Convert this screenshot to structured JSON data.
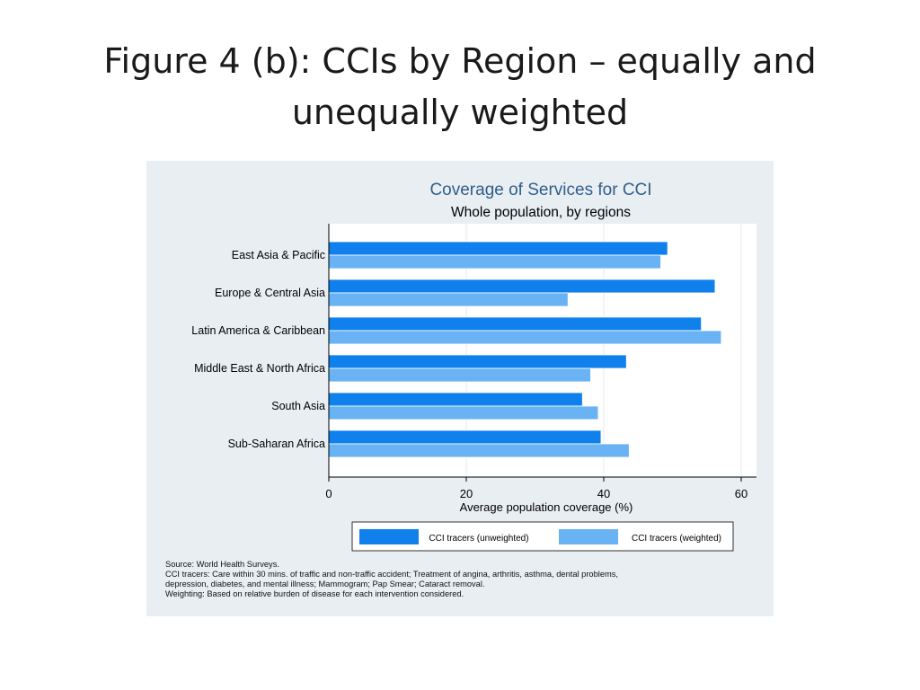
{
  "slide": {
    "title_lines": [
      "Figure 4 (b): CCIs by Region – equally and",
      "unequally weighted"
    ]
  },
  "chart_data": {
    "type": "bar",
    "orientation": "horizontal",
    "title": "Coverage of Services for CCI",
    "subtitle": "Whole population, by regions",
    "xlabel": "Average population coverage (%)",
    "ylabel": "",
    "xlim": [
      0,
      62
    ],
    "xticks": [
      0,
      20,
      40,
      60
    ],
    "grid": "vertical",
    "legend_position": "bottom",
    "categories": [
      "East Asia & Pacific",
      "Europe & Central Asia",
      "Latin America & Caribbean",
      "Middle East & North Africa",
      "South Asia",
      "Sub-Saharan Africa"
    ],
    "series": [
      {
        "name": "CCI tracers (unweighted)",
        "color": "#0f80ec",
        "values": [
          49.3,
          56.2,
          54.2,
          43.3,
          36.9,
          39.6
        ]
      },
      {
        "name": "CCI tracers (weighted)",
        "color": "#69b3f4",
        "values": [
          48.3,
          34.8,
          57.1,
          38.1,
          39.2,
          43.7
        ]
      }
    ],
    "colors": {
      "title": "#2f5f8a",
      "panel_background": "#e9eef3",
      "plot_background": "#ffffff",
      "grid": "#e6eaee",
      "axis": "#000000"
    }
  },
  "notes": [
    "Source: World Health Surveys.",
    "CCI tracers: Care within 30 mins. of traffic and non-traffic accident; Treatment of angina, arthritis, asthma, dental problems,",
    "depression, diabetes, and mental illness; Mammogram; Pap Smear; Cataract removal.",
    "Weighting: Based on relative burden of disease for each intervention considered."
  ]
}
